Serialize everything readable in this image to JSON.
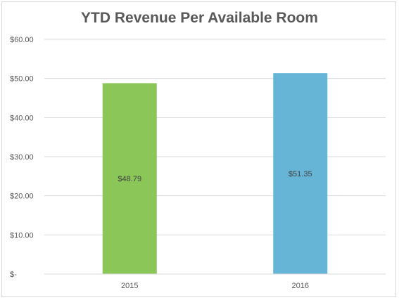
{
  "chart_data": {
    "type": "bar",
    "title": "YTD Revenue Per Available Room",
    "xlabel": "",
    "ylabel": "",
    "categories": [
      "2015",
      "2016"
    ],
    "values": [
      48.79,
      51.35
    ],
    "data_labels": [
      "$48.79",
      "$51.35"
    ],
    "bar_colors": [
      "#8bc659",
      "#66b4d6"
    ],
    "ylim": [
      0,
      60
    ],
    "y_ticks": [
      0,
      10,
      20,
      30,
      40,
      50,
      60
    ],
    "y_tick_labels": [
      "$-",
      "$10.00",
      "$20.00",
      "$30.00",
      "$40.00",
      "$50.00",
      "$60.00"
    ],
    "grid": true,
    "legend": "none"
  }
}
